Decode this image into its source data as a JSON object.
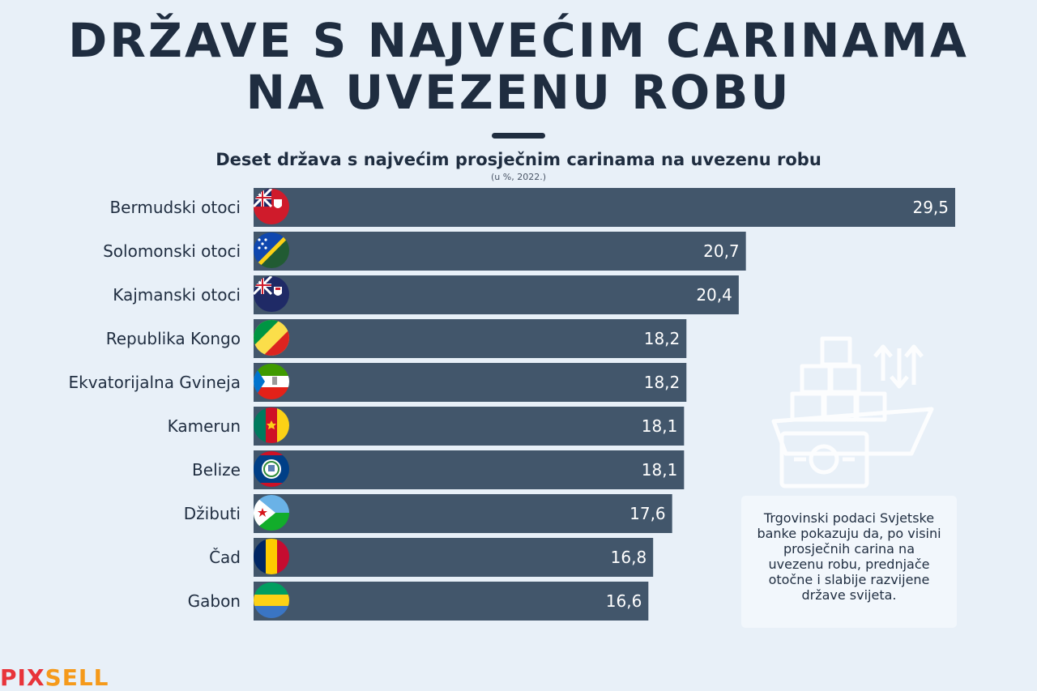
{
  "title_line1": "DRŽAVE S NAJVEĆIM CARINAMA",
  "title_line2": "NA UVEZENU ROBU",
  "logo_part1": "PIX",
  "logo_part2": "SELL",
  "note": "Trgovinski podaci Svjetske banke pokazuju da, po visini prosječnih carina na uvezenu robu, prednjače otočne i slabije razvijene države svijeta.",
  "colors": {
    "background": "#e8f0f8",
    "bar": "#42566b",
    "text": "#1f2d40",
    "logo_red": "#e8343a",
    "logo_orange": "#f59a1b"
  },
  "chart_data": {
    "type": "bar",
    "orientation": "horizontal",
    "title": "Deset država s najvećim prosječnim carinama na uvezenu robu",
    "subtitle": "(u %, 2022.)",
    "categories": [
      "Bermudski otoci",
      "Solomonski otoci",
      "Kajmanski otoci",
      "Republika Kongo",
      "Ekvatorijalna Gvineja",
      "Kamerun",
      "Belize",
      "Džibuti",
      "Čad",
      "Gabon"
    ],
    "values": [
      29.5,
      20.7,
      20.4,
      18.2,
      18.2,
      18.1,
      18.1,
      17.6,
      16.8,
      16.6
    ],
    "value_labels": [
      "29,5",
      "20,7",
      "20,4",
      "18,2",
      "18,2",
      "18,1",
      "18,1",
      "17,6",
      "16,8",
      "16,6"
    ],
    "flag_icons": [
      "bermuda-flag-icon",
      "solomon-islands-flag-icon",
      "cayman-islands-flag-icon",
      "republic-of-congo-flag-icon",
      "equatorial-guinea-flag-icon",
      "cameroon-flag-icon",
      "belize-flag-icon",
      "djibouti-flag-icon",
      "chad-flag-icon",
      "gabon-flag-icon"
    ],
    "xlim": [
      0,
      29.5
    ],
    "grid": false,
    "legend": "none"
  }
}
